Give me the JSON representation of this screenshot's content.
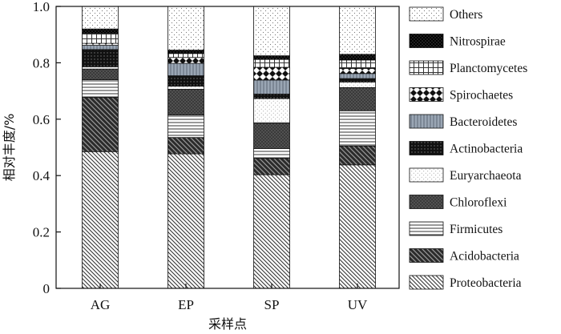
{
  "chart_data": {
    "type": "bar",
    "stacked": true,
    "categories": [
      "AG",
      "EP",
      "SP",
      "UV"
    ],
    "xlabel": "采样点",
    "ylabel": "相对丰度/%",
    "ylim": [
      0,
      1.0
    ],
    "yticks": [
      "0",
      "0.2",
      "0.4",
      "0.6",
      "0.8",
      "1.0"
    ],
    "legend_position": "right",
    "series": [
      {
        "name": "Proteobacteria",
        "pattern": "diag-fine",
        "values": [
          0.485,
          0.477,
          0.403,
          0.438
        ]
      },
      {
        "name": "Acidobacteria",
        "pattern": "diag-dark",
        "values": [
          0.192,
          0.058,
          0.058,
          0.067
        ]
      },
      {
        "name": "Firmicutes",
        "pattern": "horiz",
        "values": [
          0.063,
          0.08,
          0.035,
          0.125
        ]
      },
      {
        "name": "Chloroflexi",
        "pattern": "dark-dots",
        "values": [
          0.038,
          0.091,
          0.091,
          0.082
        ]
      },
      {
        "name": "Euryarchaeota",
        "pattern": "light-dots",
        "values": [
          0.008,
          0.011,
          0.086,
          0.02
        ]
      },
      {
        "name": "Actinobacteria",
        "pattern": "black-dots",
        "values": [
          0.061,
          0.037,
          0.016,
          0.012
        ]
      },
      {
        "name": "Bacteroidetes",
        "pattern": "vert-gray",
        "values": [
          0.015,
          0.044,
          0.05,
          0.018
        ]
      },
      {
        "name": "Spirochaetes",
        "pattern": "diamond",
        "values": [
          0.007,
          0.021,
          0.045,
          0.018
        ]
      },
      {
        "name": "Planctomycetes",
        "pattern": "grid",
        "values": [
          0.036,
          0.014,
          0.028,
          0.03
        ]
      },
      {
        "name": "Nitrospirae",
        "pattern": "black-dense",
        "values": [
          0.015,
          0.012,
          0.013,
          0.02
        ]
      },
      {
        "name": "Others",
        "pattern": "sparse-dots",
        "values": [
          0.08,
          0.155,
          0.175,
          0.17
        ]
      }
    ]
  }
}
